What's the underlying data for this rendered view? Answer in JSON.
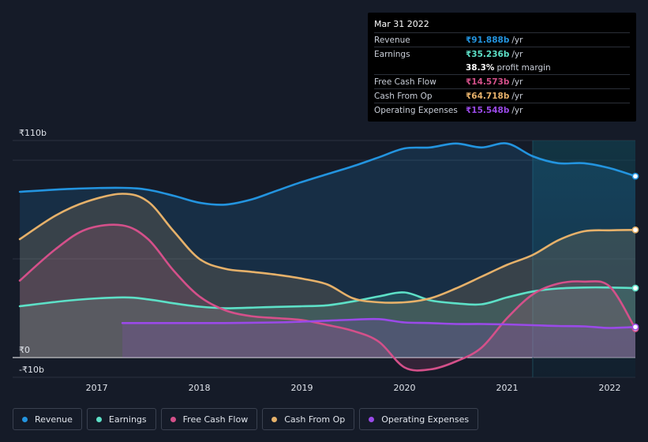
{
  "tooltip": {
    "date": "Mar 31 2022",
    "rows": [
      {
        "name": "Revenue",
        "value": "₹91.888b",
        "unit": "/yr",
        "color": "#2394df"
      },
      {
        "name": "Earnings",
        "value": "₹35.236b",
        "unit": "/yr",
        "color": "#5de0c7"
      },
      {
        "name": "",
        "value": "38.3%",
        "unit": "profit margin",
        "color": "#ffffff"
      },
      {
        "name": "Free Cash Flow",
        "value": "₹14.573b",
        "unit": "/yr",
        "color": "#d4508a"
      },
      {
        "name": "Cash From Op",
        "value": "₹64.718b",
        "unit": "/yr",
        "color": "#e6b16a"
      },
      {
        "name": "Operating Expenses",
        "value": "₹15.548b",
        "unit": "/yr",
        "color": "#9a4ae8"
      }
    ]
  },
  "legend": [
    {
      "label": "Revenue",
      "color": "#2394df"
    },
    {
      "label": "Earnings",
      "color": "#5de0c7"
    },
    {
      "label": "Free Cash Flow",
      "color": "#d4508a"
    },
    {
      "label": "Cash From Op",
      "color": "#e6b16a"
    },
    {
      "label": "Operating Expenses",
      "color": "#9a4ae8"
    }
  ],
  "chart_data": {
    "type": "area",
    "title": "",
    "xlabel": "",
    "ylabel": "",
    "y_tick_labels": [
      {
        "value": 110,
        "label": "₹110b"
      },
      {
        "value": 0,
        "label": "₹0"
      },
      {
        "value": -10,
        "label": "-₹10b"
      }
    ],
    "x_tick_labels": [
      {
        "value": 2017,
        "label": "2017"
      },
      {
        "value": 2018,
        "label": "2018"
      },
      {
        "value": 2019,
        "label": "2019"
      },
      {
        "value": 2020,
        "label": "2020"
      },
      {
        "value": 2021,
        "label": "2021"
      },
      {
        "value": 2022,
        "label": "2022"
      }
    ],
    "xlim": [
      2016.18,
      2022.25
    ],
    "ylim": [
      -10,
      110
    ],
    "highlight_from": 2021.25,
    "series": [
      {
        "name": "Revenue",
        "color": "#2394df",
        "x": [
          2016.25,
          2016.75,
          2017.25,
          2017.5,
          2017.75,
          2018.0,
          2018.25,
          2018.5,
          2018.75,
          2019.0,
          2019.25,
          2019.5,
          2019.75,
          2020.0,
          2020.25,
          2020.5,
          2020.75,
          2021.0,
          2021.25,
          2021.5,
          2021.75,
          2022.0,
          2022.25
        ],
        "y": [
          84,
          85.5,
          86,
          85,
          82,
          78.5,
          77.5,
          80,
          84.5,
          89,
          93,
          97,
          101.5,
          106,
          106.5,
          108.5,
          106.5,
          108.5,
          102,
          98.5,
          98.5,
          96,
          91.9
        ]
      },
      {
        "name": "Earnings",
        "color": "#5de0c7",
        "x": [
          2016.25,
          2016.75,
          2017.25,
          2017.5,
          2017.75,
          2018.0,
          2018.25,
          2018.5,
          2018.75,
          2019.0,
          2019.25,
          2019.5,
          2019.75,
          2020.0,
          2020.25,
          2020.5,
          2020.75,
          2021.0,
          2021.25,
          2021.5,
          2021.75,
          2022.0,
          2022.25
        ],
        "y": [
          26,
          29,
          30.5,
          29.5,
          27.5,
          25.8,
          25,
          25.3,
          25.7,
          26,
          26.5,
          28.5,
          31,
          33,
          29,
          27.5,
          27,
          30.5,
          33.5,
          35,
          35.5,
          35.5,
          35.2
        ]
      },
      {
        "name": "Free Cash Flow",
        "color": "#d4508a",
        "x": [
          2016.25,
          2016.6,
          2016.9,
          2017.25,
          2017.5,
          2017.75,
          2018.0,
          2018.25,
          2018.5,
          2018.75,
          2019.0,
          2019.25,
          2019.5,
          2019.75,
          2020.0,
          2020.25,
          2020.5,
          2020.75,
          2021.0,
          2021.25,
          2021.5,
          2021.75,
          2022.0,
          2022.25
        ],
        "y": [
          39,
          55,
          65,
          67,
          60,
          44,
          31,
          24,
          21,
          20,
          19,
          16.5,
          13.5,
          8,
          -5,
          -6,
          -2,
          5,
          20,
          32,
          37.5,
          38.5,
          36,
          14.6
        ]
      },
      {
        "name": "Cash From Op",
        "color": "#e6b16a",
        "x": [
          2016.25,
          2016.6,
          2016.9,
          2017.25,
          2017.5,
          2017.75,
          2018.0,
          2018.25,
          2018.5,
          2018.75,
          2019.0,
          2019.25,
          2019.5,
          2019.75,
          2020.0,
          2020.25,
          2020.5,
          2020.75,
          2021.0,
          2021.25,
          2021.5,
          2021.75,
          2022.0,
          2022.25
        ],
        "y": [
          60,
          72,
          79,
          83,
          79,
          64,
          50,
          45,
          43.5,
          42,
          40,
          37,
          30,
          28,
          28,
          30,
          35,
          41,
          47,
          52,
          59.5,
          64,
          64.5,
          64.7
        ]
      },
      {
        "name": "Operating Expenses",
        "color": "#9a4ae8",
        "x": [
          2017.25,
          2017.75,
          2018.25,
          2018.75,
          2019.0,
          2019.25,
          2019.5,
          2019.75,
          2020.0,
          2020.25,
          2020.5,
          2020.75,
          2021.0,
          2021.25,
          2021.5,
          2021.75,
          2022.0,
          2022.25
        ],
        "y": [
          17.5,
          17.5,
          17.5,
          17.8,
          18.2,
          18.7,
          19.2,
          19.5,
          17.8,
          17.5,
          17,
          17,
          16.8,
          16.4,
          16,
          15.8,
          15,
          15.5
        ]
      }
    ]
  }
}
